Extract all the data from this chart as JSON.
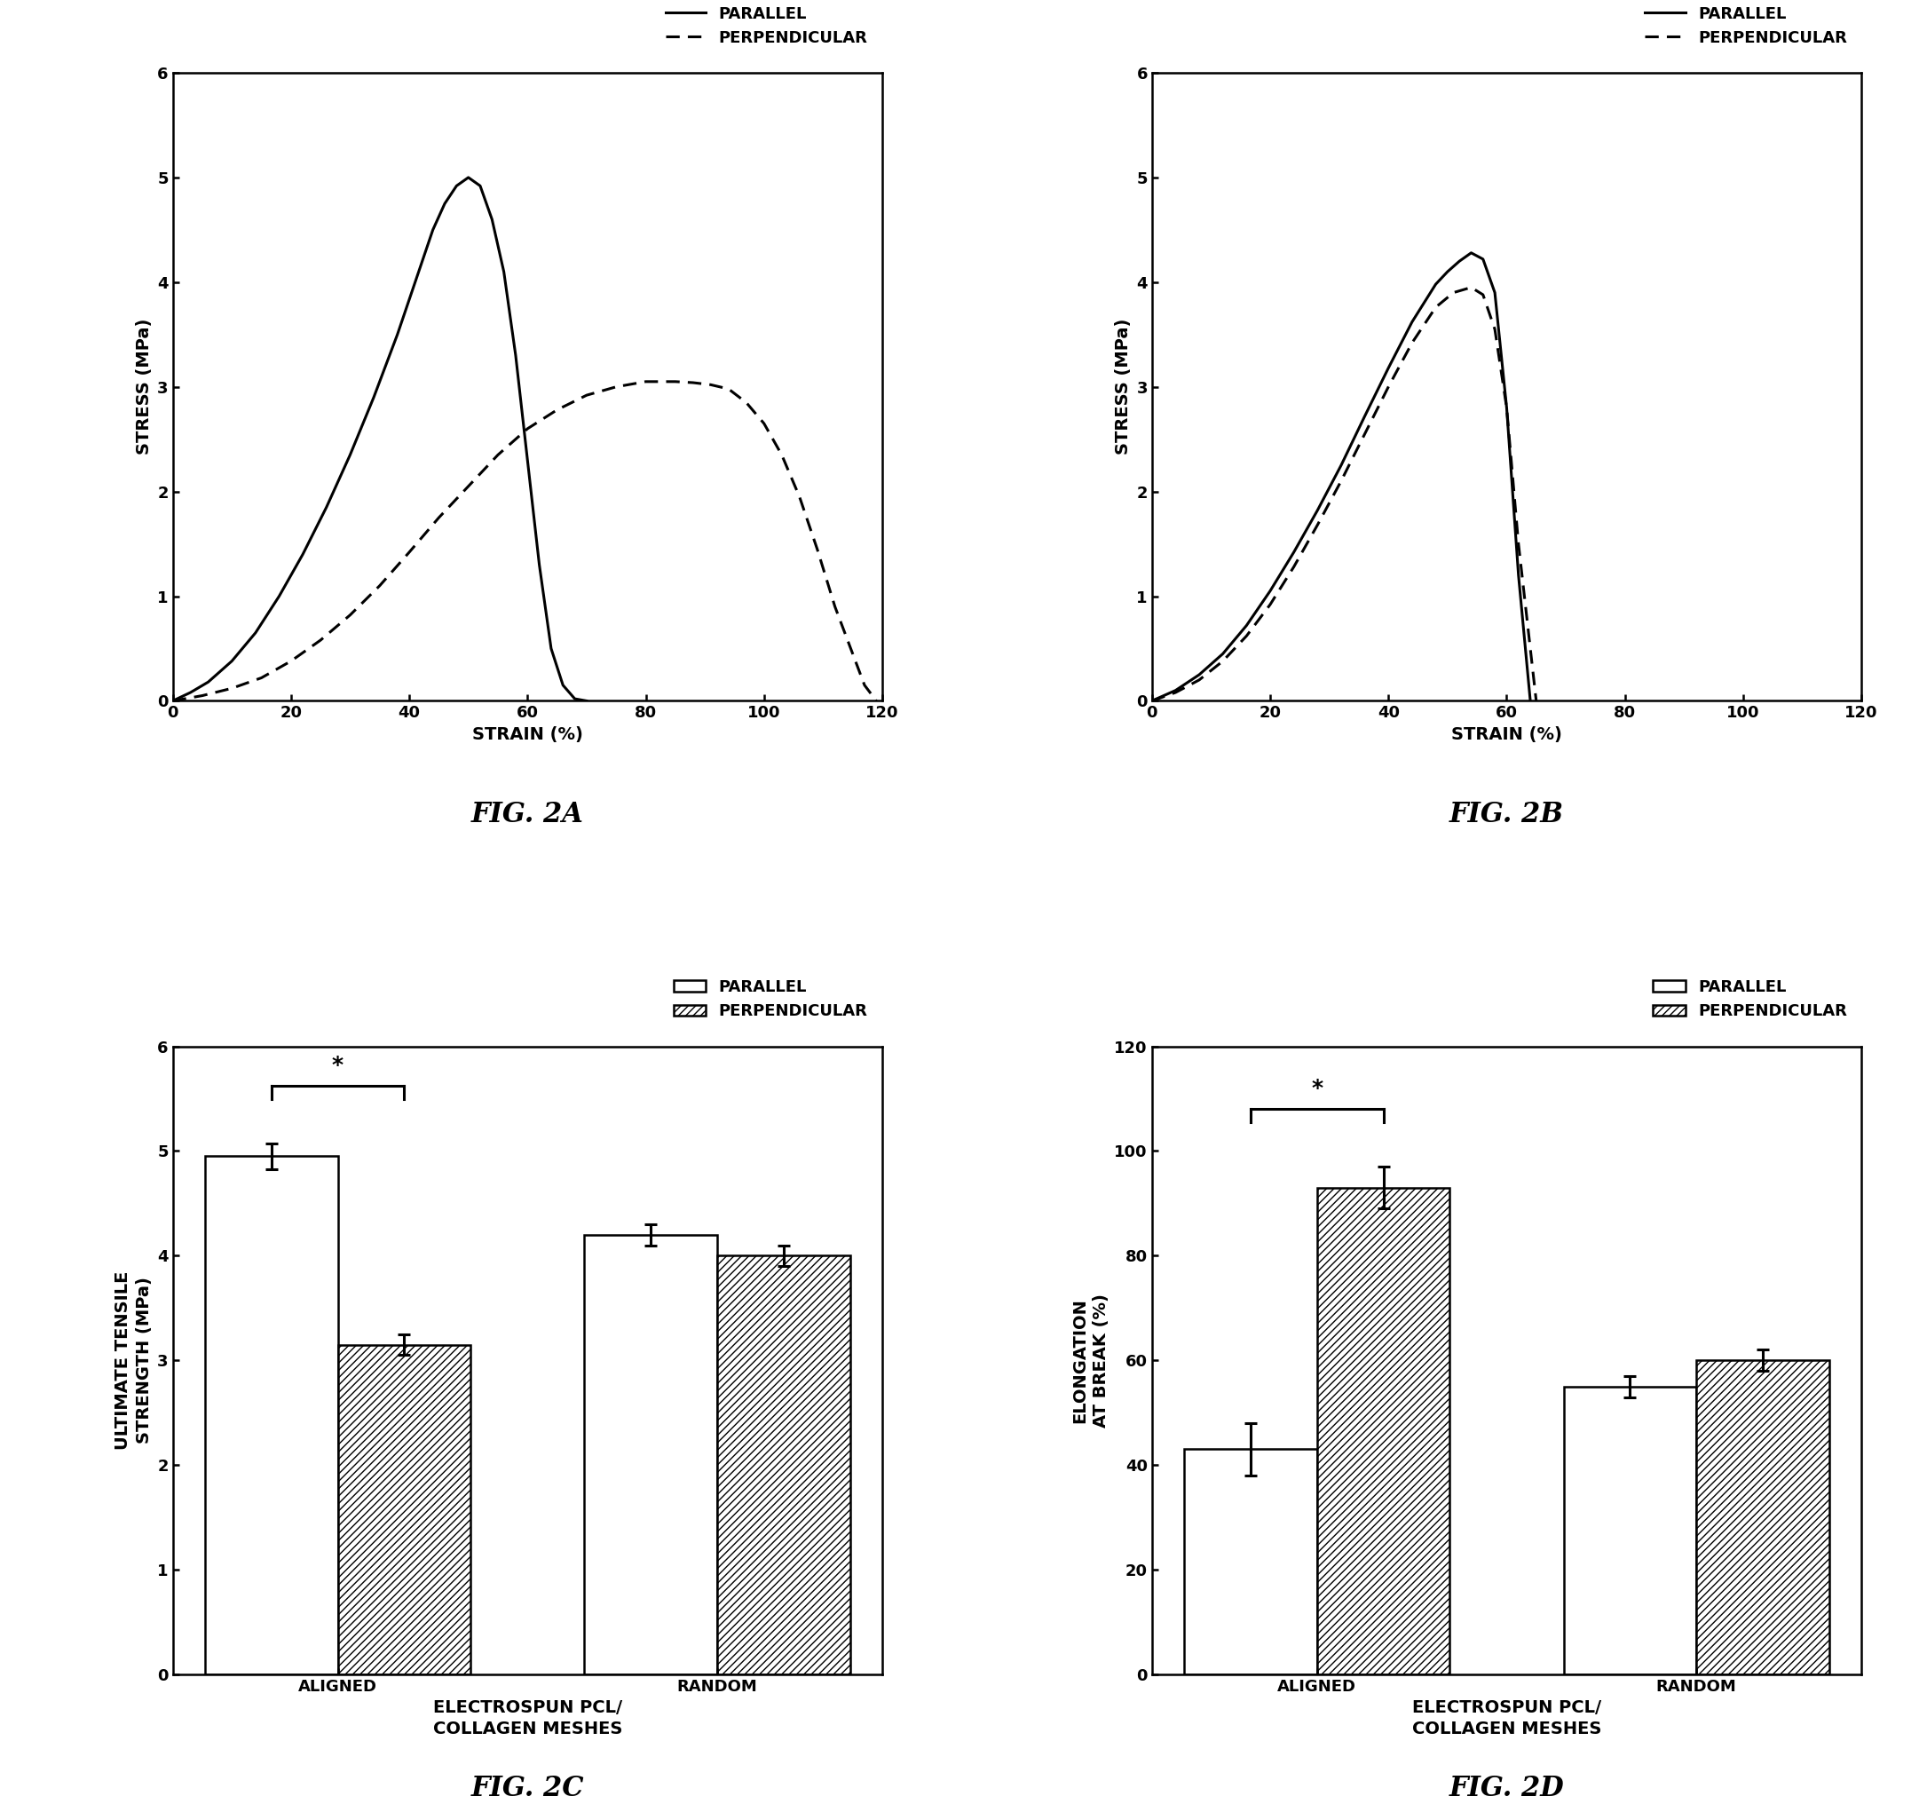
{
  "fig2a": {
    "title": "FIG. 2A",
    "xlabel": "STRAIN (%)",
    "ylabel": "STRESS (MPa)",
    "xlim": [
      0,
      120
    ],
    "ylim": [
      0,
      6
    ],
    "xticks": [
      0,
      20,
      40,
      60,
      80,
      100,
      120
    ],
    "yticks": [
      0,
      1,
      2,
      3,
      4,
      5,
      6
    ],
    "parallel_x": [
      0,
      3,
      6,
      10,
      14,
      18,
      22,
      26,
      30,
      34,
      38,
      41,
      44,
      46,
      48,
      50,
      52,
      54,
      56,
      58,
      60,
      62,
      64,
      66,
      68,
      70
    ],
    "parallel_y": [
      0,
      0.08,
      0.18,
      0.38,
      0.65,
      1.0,
      1.4,
      1.85,
      2.35,
      2.9,
      3.5,
      4.0,
      4.5,
      4.75,
      4.92,
      5.0,
      4.92,
      4.6,
      4.1,
      3.3,
      2.3,
      1.3,
      0.5,
      0.15,
      0.02,
      0.0
    ],
    "perp_x": [
      0,
      5,
      10,
      15,
      20,
      25,
      30,
      35,
      40,
      45,
      50,
      55,
      60,
      65,
      70,
      75,
      80,
      85,
      88,
      91,
      94,
      97,
      100,
      103,
      106,
      109,
      112,
      115,
      117,
      119
    ],
    "perp_y": [
      0,
      0.05,
      0.12,
      0.22,
      0.38,
      0.58,
      0.82,
      1.1,
      1.42,
      1.75,
      2.05,
      2.35,
      2.6,
      2.78,
      2.92,
      3.0,
      3.05,
      3.05,
      3.04,
      3.02,
      2.98,
      2.85,
      2.65,
      2.35,
      1.95,
      1.45,
      0.9,
      0.45,
      0.15,
      0.0
    ],
    "legend_parallel": "PARALLEL",
    "legend_perp": "PERPENDICULAR"
  },
  "fig2b": {
    "title": "FIG. 2B",
    "xlabel": "STRAIN (%)",
    "ylabel": "STRESS (MPa)",
    "xlim": [
      0,
      120
    ],
    "ylim": [
      0,
      6
    ],
    "xticks": [
      0,
      20,
      40,
      60,
      80,
      100,
      120
    ],
    "yticks": [
      0,
      1,
      2,
      3,
      4,
      5,
      6
    ],
    "parallel_x": [
      0,
      4,
      8,
      12,
      16,
      20,
      24,
      28,
      32,
      36,
      40,
      44,
      48,
      50,
      52,
      54,
      56,
      58,
      60,
      62,
      64
    ],
    "parallel_y": [
      0,
      0.1,
      0.25,
      0.45,
      0.72,
      1.05,
      1.42,
      1.82,
      2.25,
      2.72,
      3.18,
      3.62,
      3.98,
      4.1,
      4.2,
      4.28,
      4.22,
      3.9,
      2.8,
      1.2,
      0.0
    ],
    "perp_x": [
      0,
      4,
      8,
      12,
      16,
      20,
      24,
      28,
      32,
      36,
      40,
      44,
      48,
      51,
      54,
      56,
      58,
      60,
      62,
      65
    ],
    "perp_y": [
      0,
      0.08,
      0.2,
      0.38,
      0.62,
      0.92,
      1.28,
      1.68,
      2.1,
      2.55,
      3.0,
      3.42,
      3.76,
      3.9,
      3.95,
      3.88,
      3.55,
      2.8,
      1.5,
      0.0
    ],
    "legend_parallel": "PARALLEL",
    "legend_perp": "PERPENDICULAR"
  },
  "fig2c": {
    "title": "FIG. 2C",
    "xlabel": "ELECTROSPUN PCL/\nCOLLAGEN MESHES",
    "ylabel": "ULTIMATE TENSILE\nSTRENGTH (MPa)",
    "ylim": [
      0,
      6
    ],
    "yticks": [
      0,
      1,
      2,
      3,
      4,
      5,
      6
    ],
    "categories": [
      "ALIGNED",
      "RANDOM"
    ],
    "parallel_vals": [
      4.95,
      4.2
    ],
    "perp_vals": [
      3.15,
      4.0
    ],
    "parallel_err": [
      0.12,
      0.1
    ],
    "perp_err": [
      0.1,
      0.1
    ],
    "legend_parallel": "PARALLEL",
    "legend_perp": "PERPENDICULAR",
    "bracket_y": 5.62,
    "bracket_drop": 0.12,
    "star_y": 5.72
  },
  "fig2d": {
    "title": "FIG. 2D",
    "xlabel": "ELECTROSPUN PCL/\nCOLLAGEN MESHES",
    "ylabel": "ELONGATION\nAT BREAK (%)",
    "ylim": [
      0,
      120
    ],
    "yticks": [
      0,
      20,
      40,
      60,
      80,
      100,
      120
    ],
    "categories": [
      "ALIGNED",
      "RANDOM"
    ],
    "parallel_vals": [
      43,
      55
    ],
    "perp_vals": [
      93,
      60
    ],
    "parallel_err": [
      5,
      2
    ],
    "perp_err": [
      4,
      2
    ],
    "legend_parallel": "PARALLEL",
    "legend_perp": "PERPENDICULAR",
    "bracket_y": 108,
    "bracket_drop": 2.5,
    "star_y": 110
  },
  "bar_width": 0.35,
  "hatch_pattern": "////",
  "line_color": "black",
  "background_color": "white",
  "font_family": "DejaVu Sans"
}
